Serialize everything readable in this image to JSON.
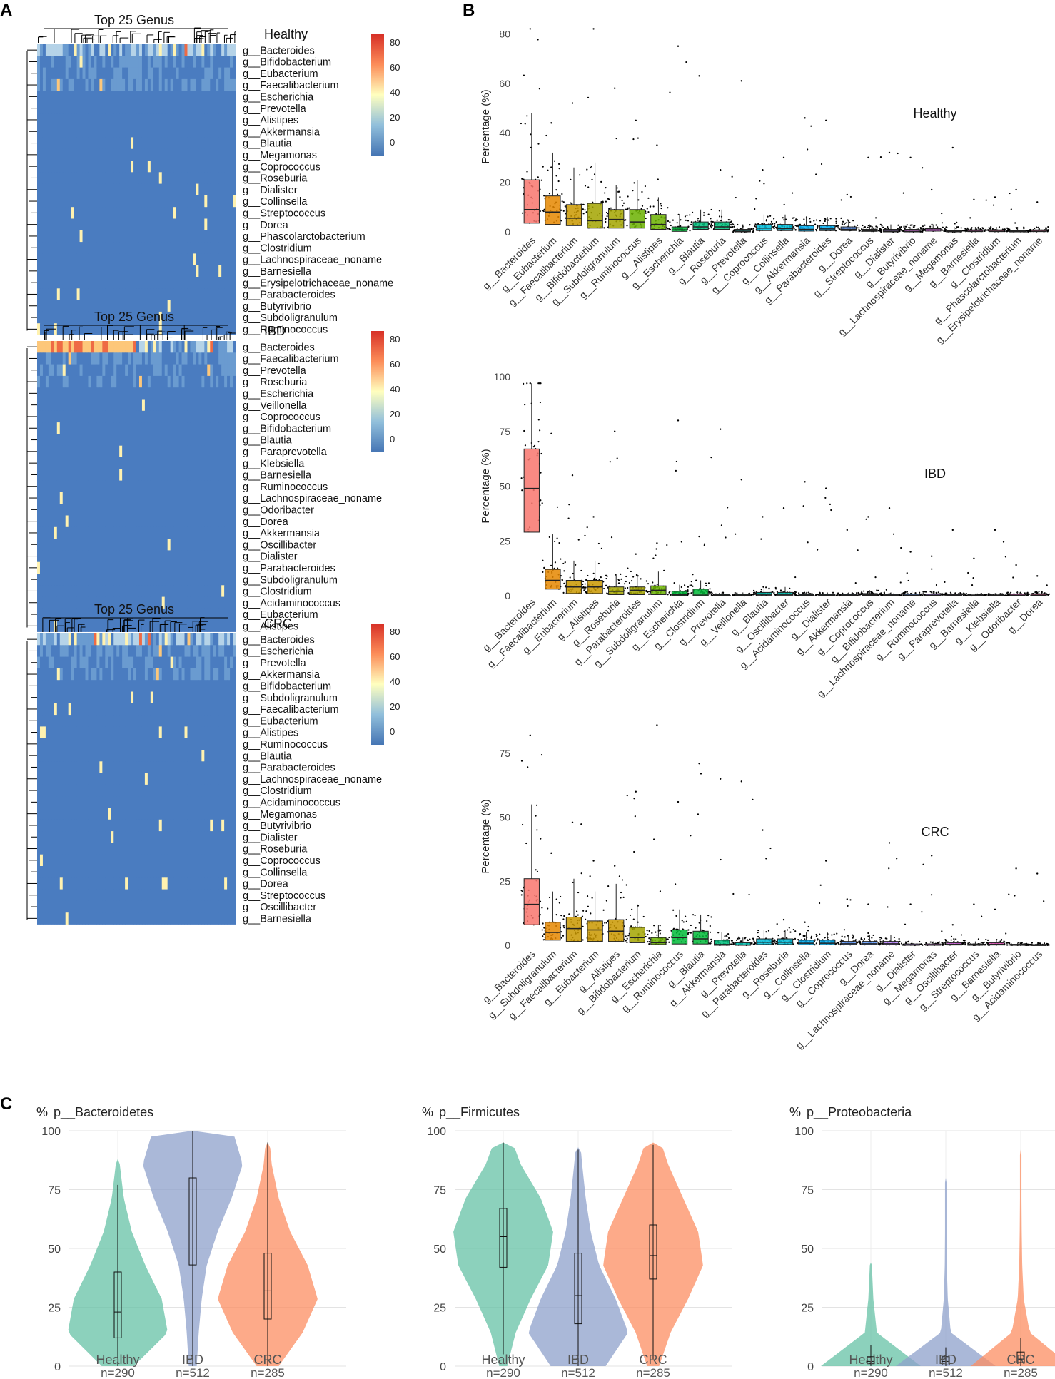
{
  "panels": {
    "A": "A",
    "B": "B",
    "C": "C"
  },
  "colors": {
    "heat_low": "#4575b4",
    "heat_mid": "#ffffbf",
    "heat_high": "#d73027",
    "healthy": "#66c2a5",
    "ibd": "#8da0cb",
    "crc": "#fc8d62",
    "grid": "#e0e0e0"
  },
  "heatmaps": [
    {
      "title": "Top 25 Genus",
      "condition": "Healthy",
      "legend_ticks": [
        "80",
        "60",
        "40",
        "20",
        "0"
      ],
      "genera": [
        "g__Bacteroides",
        "g__Bifidobacterium",
        "g__Eubacterium",
        "g__Faecalibacterium",
        "g__Escherichia",
        "g__Prevotella",
        "g__Alistipes",
        "g__Akkermansia",
        "g__Blautia",
        "g__Megamonas",
        "g__Coprococcus",
        "g__Roseburia",
        "g__Dialister",
        "g__Collinsella",
        "g__Streptococcus",
        "g__Dorea",
        "g__Phascolarctobacterium",
        "g__Clostridium",
        "g__Lachnospiraceae_noname",
        "g__Barnesiella",
        "g__Erysipelotrichaceae_noname",
        "g__Parabacteroides",
        "g__Butyrivibrio",
        "g__Subdoligranulum",
        "g__Ruminococcus"
      ]
    },
    {
      "title": "Top 25 Genus",
      "condition": "IBD",
      "legend_ticks": [
        "80",
        "60",
        "40",
        "20",
        "0"
      ],
      "genera": [
        "g__Bacteroides",
        "g__Faecalibacterium",
        "g__Prevotella",
        "g__Roseburia",
        "g__Escherichia",
        "g__Veillonella",
        "g__Coprococcus",
        "g__Bifidobacterium",
        "g__Blautia",
        "g__Paraprevotella",
        "g__Klebsiella",
        "g__Barnesiella",
        "g__Ruminococcus",
        "g__Lachnospiraceae_noname",
        "g__Odoribacter",
        "g__Dorea",
        "g__Akkermansia",
        "g__Oscillibacter",
        "g__Dialister",
        "g__Parabacteroides",
        "g__Subdoligranulum",
        "g__Clostridium",
        "g__Acidaminococcus",
        "g__Eubacterium",
        "g__Alistipes"
      ]
    },
    {
      "title": "Top 25 Genus",
      "condition": "CRC",
      "legend_ticks": [
        "80",
        "60",
        "40",
        "20",
        "0"
      ],
      "genera": [
        "g__Bacteroides",
        "g__Escherichia",
        "g__Prevotella",
        "g__Akkermansia",
        "g__Bifidobacterium",
        "g__Subdoligranulum",
        "g__Faecalibacterium",
        "g__Eubacterium",
        "g__Alistipes",
        "g__Ruminococcus",
        "g__Blautia",
        "g__Parabacteroides",
        "g__Lachnospiraceae_noname",
        "g__Clostridium",
        "g__Acidaminococcus",
        "g__Megamonas",
        "g__Butyrivibrio",
        "g__Dialister",
        "g__Roseburia",
        "g__Coprococcus",
        "g__Collinsella",
        "g__Dorea",
        "g__Streptococcus",
        "g__Oscillibacter",
        "g__Barnesiella"
      ]
    }
  ],
  "chart_data": [
    {
      "type": "box",
      "condition": "Healthy",
      "ylabel": "Percentage (%)",
      "ylim": [
        0,
        85
      ],
      "yticks": [
        0,
        20,
        40,
        60,
        80
      ],
      "categories": [
        "g__Bacteroides",
        "g__Eubacterium",
        "g__Faecalibacterium",
        "g__Bifidobacterium",
        "g__Subdoligranulum",
        "g__Ruminococcus",
        "g__Alistipes",
        "g__Escherichia",
        "g__Blautia",
        "g__Roseburia",
        "g__Prevotella",
        "g__Coprococcus",
        "g__Collinsella",
        "g__Akkermansia",
        "g__Parabacteroides",
        "g__Dorea",
        "g__Streptococcus",
        "g__Dialister",
        "g__Butyrivibrio",
        "g__Lachnospiraceae_noname",
        "g__Megamonas",
        "g__Barnesiella",
        "g__Clostridium",
        "g__Phascolarctobacterium",
        "g__Erysipelotrichaceae_noname"
      ],
      "q1": [
        3.5,
        3,
        2.5,
        1.5,
        1.5,
        1.5,
        1,
        0.2,
        1,
        1,
        0,
        0.5,
        0.5,
        0.3,
        0.5,
        0.5,
        0.2,
        0,
        0,
        0.3,
        0,
        0.1,
        0.1,
        0,
        0.1
      ],
      "median": [
        9,
        8,
        5.5,
        4.5,
        5,
        4,
        3,
        0.8,
        2,
        2,
        0.3,
        1.5,
        1.3,
        1,
        1.2,
        1,
        0.5,
        0.3,
        0.2,
        0.8,
        0.2,
        0.3,
        0.3,
        0.2,
        0.3
      ],
      "q3": [
        21,
        14.5,
        11,
        11.5,
        9,
        9,
        7,
        2,
        4,
        4,
        1,
        3,
        3,
        2.5,
        2.5,
        2,
        1,
        1,
        1,
        1.3,
        0.5,
        0.8,
        0.8,
        0.5,
        0.8
      ],
      "whisker_high": [
        48,
        32,
        26,
        28,
        19,
        21,
        14,
        7,
        9,
        9,
        3,
        7,
        7,
        6,
        6,
        5,
        3,
        3,
        3,
        3,
        2,
        2,
        2,
        2,
        2
      ],
      "max_point": [
        82,
        44,
        52,
        82,
        58,
        45,
        35,
        75,
        63,
        25,
        61,
        25,
        30,
        46,
        45,
        15,
        30,
        32,
        30,
        17,
        34,
        13,
        14,
        17,
        12
      ],
      "box_colors": [
        "#f8766d",
        "#e58700",
        "#c99800",
        "#a3a500",
        "#a3a500",
        "#6bb100",
        "#6bb100",
        "#00ba38",
        "#00bf7d",
        "#00bf7d",
        "#00c0af",
        "#00bcd8",
        "#00bcd8",
        "#00b0f6",
        "#00b0f6",
        "#619cff",
        "#b983ff",
        "#b983ff",
        "#e76bf3",
        "#e76bf3",
        "#fd61d1",
        "#fd61d1",
        "#ff67a4",
        "#ff67a4",
        "#ff67a4"
      ]
    },
    {
      "type": "box",
      "condition": "IBD",
      "ylabel": "Percentage (%)",
      "ylim": [
        0,
        100
      ],
      "yticks": [
        0,
        25,
        50,
        75,
        100
      ],
      "categories": [
        "g__Bacteroides",
        "g__Faecalibacterium",
        "g__Eubacterium",
        "g__Alistipes",
        "g__Roseburia",
        "g__Parabacteroides",
        "g__Subdoligranulum",
        "g__Escherichia",
        "g__Clostridium",
        "g__Prevotella",
        "g__Veillonella",
        "g__Blautia",
        "g__Oscillibacter",
        "g__Acidaminococcus",
        "g__Dialister",
        "g__Akkermansia",
        "g__Coprococcus",
        "g__Bifidobacterium",
        "g__Lachnospiraceae_noname",
        "g__Ruminococcus",
        "g__Paraprevotella",
        "g__Barnesiella",
        "g__Klebsiella",
        "g__Odoribacter",
        "g__Dorea"
      ],
      "q1": [
        29,
        3,
        1,
        1,
        0.5,
        0.5,
        0.5,
        0.1,
        0.1,
        0,
        0,
        0.2,
        0.2,
        0,
        0,
        0,
        0.1,
        0,
        0.1,
        0.1,
        0,
        0,
        0,
        0.1,
        0.1
      ],
      "median": [
        49,
        7,
        4,
        4,
        2,
        2.5,
        2.5,
        0.5,
        0.7,
        0.1,
        0.1,
        0.6,
        0.6,
        0.1,
        0.1,
        0.1,
        0.4,
        0.1,
        0.3,
        0.3,
        0.1,
        0.1,
        0.1,
        0.3,
        0.3
      ],
      "q3": [
        67,
        12,
        7,
        7,
        4,
        4,
        4.5,
        2,
        3,
        0.5,
        0.5,
        1.5,
        1.5,
        0.5,
        0.5,
        0.5,
        1,
        0.5,
        0.8,
        0.8,
        0.5,
        0.4,
        0.4,
        0.8,
        0.8
      ],
      "whisker_high": [
        97,
        28,
        16,
        16,
        10,
        10,
        11,
        5,
        7,
        1.5,
        1.5,
        4,
        4,
        1.5,
        1.5,
        1.5,
        2.5,
        1.5,
        2,
        2,
        1.5,
        1,
        1,
        2,
        2
      ],
      "max_point": [
        97,
        74,
        55,
        36,
        75,
        19,
        24,
        80,
        27,
        76,
        53,
        36,
        40,
        52,
        49,
        30,
        36,
        40,
        20,
        18,
        30,
        17,
        30,
        14,
        9
      ],
      "box_colors": [
        "#f8766d",
        "#e58700",
        "#c99800",
        "#c99800",
        "#a3a500",
        "#a3a500",
        "#6bb100",
        "#00ba38",
        "#00ba38",
        "#00bf7d",
        "#00bf7d",
        "#00c0af",
        "#00c0af",
        "#00bcd8",
        "#00bcd8",
        "#00b0f6",
        "#00b0f6",
        "#619cff",
        "#619cff",
        "#b983ff",
        "#b983ff",
        "#e76bf3",
        "#e76bf3",
        "#fd61d1",
        "#ff67a4"
      ]
    },
    {
      "type": "box",
      "condition": "CRC",
      "ylabel": "Percentage (%)",
      "ylim": [
        0,
        85
      ],
      "yticks": [
        0,
        25,
        50,
        75
      ],
      "categories": [
        "g__Bacteroides",
        "g__Subdoligranulum",
        "g__Faecalibacterium",
        "g__Eubacterium",
        "g__Alistipes",
        "g__Bifidobacterium",
        "g__Escherichia",
        "g__Ruminococcus",
        "g__Blautia",
        "g__Akkermansia",
        "g__Prevotella",
        "g__Parabacteroides",
        "g__Roseburia",
        "g__Collinsella",
        "g__Clostridium",
        "g__Coprococcus",
        "g__Dorea",
        "g__Lachnospiraceae_noname",
        "g__Dialister",
        "g__Megamonas",
        "g__Oscillibacter",
        "g__Streptococcus",
        "g__Barnesiella",
        "g__Butyrivibrio",
        "g__Acidaminococcus"
      ],
      "q1": [
        8,
        2,
        1.5,
        1.5,
        1.5,
        1,
        0.3,
        0.5,
        0.5,
        0,
        0,
        0.3,
        0.3,
        0.2,
        0.2,
        0.2,
        0.2,
        0.2,
        0,
        0,
        0.1,
        0,
        0.1,
        0,
        0
      ],
      "median": [
        16,
        5,
        6.5,
        6,
        5.5,
        3,
        1,
        3,
        2.5,
        0.3,
        0.1,
        1.2,
        1.2,
        0.8,
        0.8,
        0.6,
        0.6,
        0.6,
        0.1,
        0.1,
        0.4,
        0.2,
        0.4,
        0.1,
        0.1
      ],
      "q3": [
        26,
        9,
        11,
        9.5,
        10,
        7,
        3,
        6,
        5.5,
        2,
        1,
        2.5,
        2.5,
        2,
        2,
        1.5,
        1.5,
        1.5,
        0.5,
        0.5,
        1,
        0.5,
        1,
        0.4,
        0.3
      ],
      "whisker_high": [
        55,
        21,
        26,
        21,
        24,
        16,
        8,
        14,
        12,
        5,
        3,
        6,
        6,
        5,
        5,
        4,
        4,
        4,
        1.5,
        1.5,
        2.5,
        1.5,
        2.5,
        1,
        1
      ],
      "max_point": [
        82,
        36,
        48,
        33,
        31,
        60,
        86,
        56,
        71,
        65,
        64,
        45,
        10,
        9,
        33,
        18,
        16,
        40,
        16,
        35,
        8,
        16,
        14,
        30,
        28
      ],
      "box_colors": [
        "#f8766d",
        "#e58700",
        "#c99800",
        "#c99800",
        "#c99800",
        "#a3a500",
        "#6bb100",
        "#00ba38",
        "#00ba38",
        "#00bf7d",
        "#00c0af",
        "#00bcd8",
        "#00bcd8",
        "#00b0f6",
        "#00b0f6",
        "#619cff",
        "#619cff",
        "#b983ff",
        "#b983ff",
        "#e76bf3",
        "#e76bf3",
        "#fd61d1",
        "#fd61d1",
        "#ff67a4",
        "#ff67a4"
      ]
    },
    {
      "type": "violin",
      "title": "p__Bacteroidetes",
      "yunit": "%",
      "ylim": [
        0,
        100
      ],
      "yticks": [
        0,
        25,
        50,
        75,
        100
      ],
      "groups": [
        {
          "name": "Healthy",
          "n": "n=290",
          "q1": 12,
          "median": 23,
          "q3": 40,
          "whisker_low": 0,
          "whisker_high": 77,
          "max": 88,
          "width": [
            0.32,
            1.0,
            0.88,
            0.55,
            0.28,
            0.12,
            0.04,
            0.0
          ],
          "color": "#66c2a5"
        },
        {
          "name": "IBD",
          "n": "n=512",
          "q1": 43,
          "median": 65,
          "q3": 80,
          "whisker_low": 0,
          "whisker_high": 100,
          "max": 100,
          "width": [
            0.08,
            0.12,
            0.18,
            0.28,
            0.5,
            0.78,
            1.0,
            0.8
          ],
          "color": "#8da0cb"
        },
        {
          "name": "CRC",
          "n": "n=285",
          "q1": 20,
          "median": 32,
          "q3": 48,
          "whisker_low": 0,
          "whisker_high": 95,
          "max": 95,
          "width": [
            0.22,
            0.7,
            1.0,
            0.8,
            0.45,
            0.22,
            0.08,
            0.02
          ],
          "color": "#fc8d62"
        }
      ]
    },
    {
      "type": "violin",
      "title": "p__Firmicutes",
      "yunit": "%",
      "ylim": [
        0,
        100
      ],
      "yticks": [
        0,
        25,
        50,
        75,
        100
      ],
      "groups": [
        {
          "name": "Healthy",
          "n": "n=290",
          "q1": 42,
          "median": 55,
          "q3": 67,
          "whisker_low": 5,
          "whisker_high": 95,
          "max": 95,
          "width": [
            0.08,
            0.25,
            0.55,
            0.9,
            1.0,
            0.75,
            0.35,
            0.1
          ],
          "color": "#66c2a5"
        },
        {
          "name": "IBD",
          "n": "n=512",
          "q1": 18,
          "median": 30,
          "q3": 48,
          "whisker_low": 0,
          "whisker_high": 92,
          "max": 93,
          "width": [
            0.55,
            1.0,
            0.75,
            0.42,
            0.25,
            0.15,
            0.08,
            0.02
          ],
          "color": "#8da0cb"
        },
        {
          "name": "CRC",
          "n": "n=285",
          "q1": 37,
          "median": 47,
          "q3": 60,
          "whisker_low": 3,
          "whisker_high": 94,
          "max": 95,
          "width": [
            0.12,
            0.35,
            0.7,
            1.0,
            0.9,
            0.6,
            0.3,
            0.08
          ],
          "color": "#fc8d62"
        }
      ]
    },
    {
      "type": "violin",
      "title": "p__Proteobacteria",
      "yunit": "%",
      "ylim": [
        0,
        100
      ],
      "yticks": [
        0,
        25,
        50,
        75,
        100
      ],
      "groups": [
        {
          "name": "Healthy",
          "n": "n=290",
          "q1": 1,
          "median": 2,
          "q3": 4,
          "whisker_low": 0,
          "whisker_high": 9,
          "max": 44,
          "width": [
            1.0,
            0.12,
            0.05,
            0.02,
            0.01,
            0.0,
            0.0,
            0.0
          ],
          "color": "#66c2a5"
        },
        {
          "name": "IBD",
          "n": "n=512",
          "q1": 0.5,
          "median": 2,
          "q3": 4,
          "whisker_low": 0,
          "whisker_high": 8,
          "max": 80,
          "width": [
            1.0,
            0.1,
            0.04,
            0.02,
            0.015,
            0.01,
            0.01,
            0.005
          ],
          "color": "#8da0cb"
        },
        {
          "name": "CRC",
          "n": "n=285",
          "q1": 1.5,
          "median": 3,
          "q3": 6,
          "whisker_low": 0,
          "whisker_high": 12,
          "max": 92,
          "width": [
            1.0,
            0.18,
            0.06,
            0.03,
            0.02,
            0.015,
            0.01,
            0.01
          ],
          "color": "#fc8d62"
        }
      ]
    }
  ]
}
